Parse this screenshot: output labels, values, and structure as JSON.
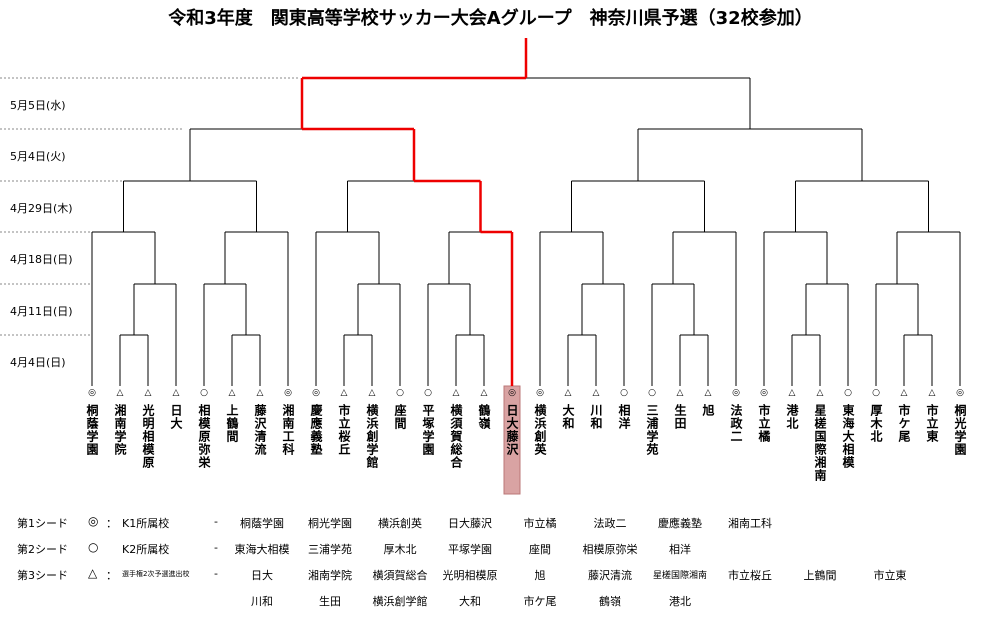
{
  "title": "令和3年度　関東高等学校サッカー大会Aグループ　神奈川県予選（32校参加）",
  "rounds": [
    "5月5日(水)",
    "5月4日(火)",
    "4月29日(木)",
    "4月18日(日)",
    "4月11日(日)",
    "4月4日(日)"
  ],
  "teams": [
    {
      "seed": "◎",
      "name": "桐蔭学園"
    },
    {
      "seed": "△",
      "name": "湘南学院"
    },
    {
      "seed": "△",
      "name": "光明相模原"
    },
    {
      "seed": "△",
      "name": "日大"
    },
    {
      "seed": "○",
      "name": "相模原弥栄"
    },
    {
      "seed": "△",
      "name": "上鶴間"
    },
    {
      "seed": "△",
      "name": "藤沢清流"
    },
    {
      "seed": "◎",
      "name": "湘南工科"
    },
    {
      "seed": "◎",
      "name": "慶應義塾"
    },
    {
      "seed": "△",
      "name": "市立桜丘"
    },
    {
      "seed": "△",
      "name": "横浜創学館"
    },
    {
      "seed": "○",
      "name": "座間"
    },
    {
      "seed": "○",
      "name": "平塚学園"
    },
    {
      "seed": "△",
      "name": "横須賀総合"
    },
    {
      "seed": "△",
      "name": "鶴嶺"
    },
    {
      "seed": "◎",
      "name": "日大藤沢",
      "highlight": true
    },
    {
      "seed": "◎",
      "name": "横浜創英"
    },
    {
      "seed": "△",
      "name": "大和"
    },
    {
      "seed": "△",
      "name": "川和"
    },
    {
      "seed": "○",
      "name": "相洋"
    },
    {
      "seed": "○",
      "name": "三浦学苑"
    },
    {
      "seed": "△",
      "name": "生田"
    },
    {
      "seed": "△",
      "name": "旭"
    },
    {
      "seed": "◎",
      "name": "法政二"
    },
    {
      "seed": "◎",
      "name": "市立橘"
    },
    {
      "seed": "△",
      "name": "港北"
    },
    {
      "seed": "△",
      "name": "星槎国際湘南"
    },
    {
      "seed": "○",
      "name": "東海大相模"
    },
    {
      "seed": "○",
      "name": "厚木北"
    },
    {
      "seed": "△",
      "name": "市ケ尾"
    },
    {
      "seed": "△",
      "name": "市立東"
    },
    {
      "seed": "◎",
      "name": "桐光学園"
    }
  ],
  "legend": [
    {
      "label": "第1シード",
      "mark": "◎",
      "sep": "：",
      "desc": "K1所属校",
      "dash": "-",
      "schools": [
        "桐蔭学園",
        "桐光学園",
        "横浜創英",
        "日大藤沢",
        "市立橘",
        "法政二",
        "慶應義塾",
        "湘南工科"
      ]
    },
    {
      "label": "第2シード",
      "mark": "○",
      "desc": "K2所属校",
      "dash": "-",
      "schools": [
        "東海大相模",
        "三浦学苑",
        "厚木北",
        "平塚学園",
        "座間",
        "相模原弥栄",
        "相洋"
      ]
    },
    {
      "label": "第3シード",
      "mark": "△",
      "sep": "：",
      "desc": "選手権2次予選進出校",
      "dash": "-",
      "schools": [
        "日大",
        "湘南学院",
        "横須賀総合",
        "光明相模原",
        "旭",
        "藤沢清流",
        "星槎国際湘南",
        "市立桜丘",
        "上鶴間",
        "市立東"
      ]
    },
    {
      "schools": [
        "川和",
        "生田",
        "横浜創学館",
        "大和",
        "市ケ尾",
        "鶴嶺",
        "港北"
      ]
    }
  ]
}
